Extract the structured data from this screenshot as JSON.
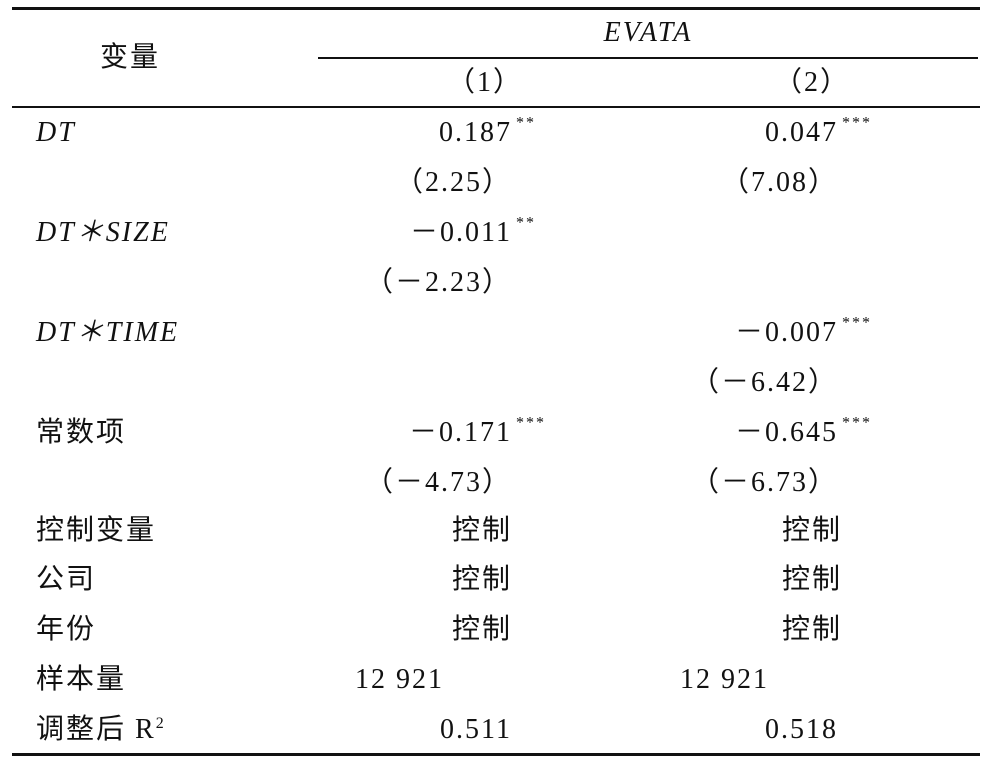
{
  "header": {
    "variable": "变量",
    "dependent": "EVATA",
    "col1": "（1）",
    "col2": "（2）"
  },
  "rows": [
    {
      "label": "DT",
      "col1": "0.187",
      "col1_sig": "**",
      "col2": "0.047",
      "col2_sig": "***"
    },
    {
      "col1": "（2.25）",
      "col2": "（7.08）"
    },
    {
      "label": "DT＊SIZE",
      "col1": "－0.011",
      "col1_sig": "**"
    },
    {
      "col1": "（－2.23）"
    },
    {
      "label": "DT＊TIME",
      "col2": "－0.007",
      "col2_sig": "***"
    },
    {
      "col2": "（－6.42）"
    },
    {
      "label": "常数项",
      "col1": "－0.171",
      "col1_sig": "***",
      "col2": "－0.645",
      "col2_sig": "***"
    },
    {
      "col1": "（－4.73）",
      "col2": "（－6.73）"
    },
    {
      "label": "控制变量",
      "col1": "控制",
      "col2": "控制"
    },
    {
      "label": "公司",
      "col1": "控制",
      "col2": "控制"
    },
    {
      "label": "年份",
      "col1": "控制",
      "col2": "控制"
    },
    {
      "label": "样本量",
      "col1": "12 921",
      "col2": "12 921"
    },
    {
      "label": "调整后 R",
      "label_sup": "2",
      "col1": "0.511",
      "col2": "0.518"
    }
  ]
}
